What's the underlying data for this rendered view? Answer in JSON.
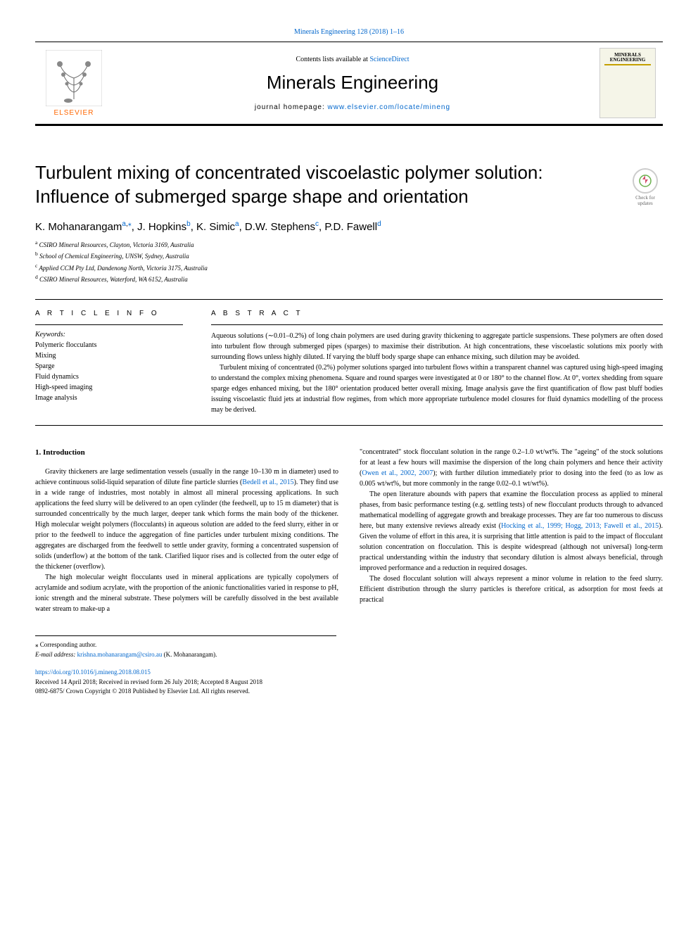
{
  "journal": {
    "citation": "Minerals Engineering 128 (2018) 1–16",
    "contents_prefix": "Contents lists available at ",
    "contents_link": "ScienceDirect",
    "name": "Minerals Engineering",
    "homepage_prefix": "journal homepage: ",
    "homepage_url": "www.elsevier.com/locate/mineng",
    "publisher": "ELSEVIER",
    "cover_title": "MINERALS ENGINEERING"
  },
  "check_updates": "Check for updates",
  "article": {
    "title": "Turbulent mixing of concentrated viscoelastic polymer solution: Influence of submerged sparge shape and orientation",
    "authors_html": "K. Mohanarangam<sup><a>a</a>,</sup><sup><a>⁎</a></sup>, J. Hopkins<sup><a>b</a></sup>, K. Simic<sup><a>a</a></sup>, D.W. Stephens<sup><a>c</a></sup>, P.D. Fawell<sup><a>d</a></sup>",
    "affiliations": [
      {
        "sup": "a",
        "text": "CSIRO Mineral Resources, Clayton, Victoria 3169, Australia"
      },
      {
        "sup": "b",
        "text": "School of Chemical Engineering, UNSW, Sydney, Australia"
      },
      {
        "sup": "c",
        "text": "Applied CCM Pty Ltd, Dandenong North, Victoria 3175, Australia"
      },
      {
        "sup": "d",
        "text": "CSIRO Mineral Resources, Waterford, WA 6152, Australia"
      }
    ]
  },
  "labels": {
    "article_info": "A R T I C L E  I N F O",
    "abstract": "A B S T R A C T",
    "keywords": "Keywords:"
  },
  "keywords": [
    "Polymeric flocculants",
    "Mixing",
    "Sparge",
    "Fluid dynamics",
    "High-speed imaging",
    "Image analysis"
  ],
  "abstract": {
    "p1": "Aqueous solutions (∼0.01–0.2%) of long chain polymers are used during gravity thickening to aggregate particle suspensions. These polymers are often dosed into turbulent flow through submerged pipes (sparges) to maximise their distribution. At high concentrations, these viscoelastic solutions mix poorly with surrounding flows unless highly diluted. If varying the bluff body sparge shape can enhance mixing, such dilution may be avoided.",
    "p2": "Turbulent mixing of concentrated (0.2%) polymer solutions sparged into turbulent flows within a transparent channel was captured using high-speed imaging to understand the complex mixing phenomena. Square and round sparges were investigated at 0 or 180° to the channel flow. At 0°, vortex shedding from square sparge edges enhanced mixing, but the 180° orientation produced better overall mixing. Image analysis gave the first quantification of flow past bluff bodies issuing viscoelastic fluid jets at industrial flow regimes, from which more appropriate turbulence model closures for fluid dynamics modelling of the process may be derived."
  },
  "body": {
    "section1_title": "1. Introduction",
    "col1_p1": "Gravity thickeners are large sedimentation vessels (usually in the range 10–130 m in diameter) used to achieve continuous solid-liquid separation of dilute fine particle slurries (<a>Bedell et al., 2015</a>). They find use in a wide range of industries, most notably in almost all mineral processing applications. In such applications the feed slurry will be delivered to an open cylinder (the feedwell, up to 15 m diameter) that is surrounded concentrically by the much larger, deeper tank which forms the main body of the thickener. High molecular weight polymers (flocculants) in aqueous solution are added to the feed slurry, either in or prior to the feedwell to induce the aggregation of fine particles under turbulent mixing conditions. The aggregates are discharged from the feedwell to settle under gravity, forming a concentrated suspension of solids (underflow) at the bottom of the tank. Clarified liquor rises and is collected from the outer edge of the thickener (overflow).",
    "col1_p2": "The high molecular weight flocculants used in mineral applications are typically copolymers of acrylamide and sodium acrylate, with the proportion of the anionic functionalities varied in response to pH, ionic strength and the mineral substrate. These polymers will be carefully dissolved in the best available water stream to make-up a",
    "col2_p1": "\"concentrated\" stock flocculant solution in the range 0.2–1.0 wt/wt%. The \"ageing\" of the stock solutions for at least a few hours will maximise the dispersion of the long chain polymers and hence their activity (<a>Owen et al., 2002, 2007</a>); with further dilution immediately prior to dosing into the feed (to as low as 0.005 wt/wt%, but more commonly in the range 0.02–0.1 wt/wt%).",
    "col2_p2": "The open literature abounds with papers that examine the flocculation process as applied to mineral phases, from basic performance testing (e.g. settling tests) of new flocculant products through to advanced mathematical modelling of aggregate growth and breakage processes. They are far too numerous to discuss here, but many extensive reviews already exist (<a>Hocking et al., 1999; Hogg, 2013; Fawell et al., 2015</a>). Given the volume of effort in this area, it is surprising that little attention is paid to the impact of flocculant solution concentration on flocculation. This is despite widespread (although not universal) long-term practical understanding within the industry that secondary dilution is almost always beneficial, through improved performance and a reduction in required dosages.",
    "col2_p3": "The dosed flocculant solution will always represent a minor volume in relation to the feed slurry. Efficient distribution through the slurry particles is therefore critical, as adsorption for most feeds at practical"
  },
  "footnotes": {
    "corresponding": "⁎ Corresponding author.",
    "email_label": "E-mail address: ",
    "email": "krishna.mohanarangam@csiro.au",
    "email_author": " (K. Mohanarangam)."
  },
  "footer": {
    "doi": "https://doi.org/10.1016/j.mineng.2018.08.015",
    "dates": "Received 14 April 2018; Received in revised form 26 July 2018; Accepted 8 August 2018",
    "copyright": "0892-6875/ Crown Copyright © 2018 Published by Elsevier Ltd. All rights reserved."
  },
  "colors": {
    "link": "#0066cc",
    "elsevier_orange": "#ff6600",
    "cover_bg": "#f5f5e8",
    "cover_accent": "#c4a000"
  }
}
